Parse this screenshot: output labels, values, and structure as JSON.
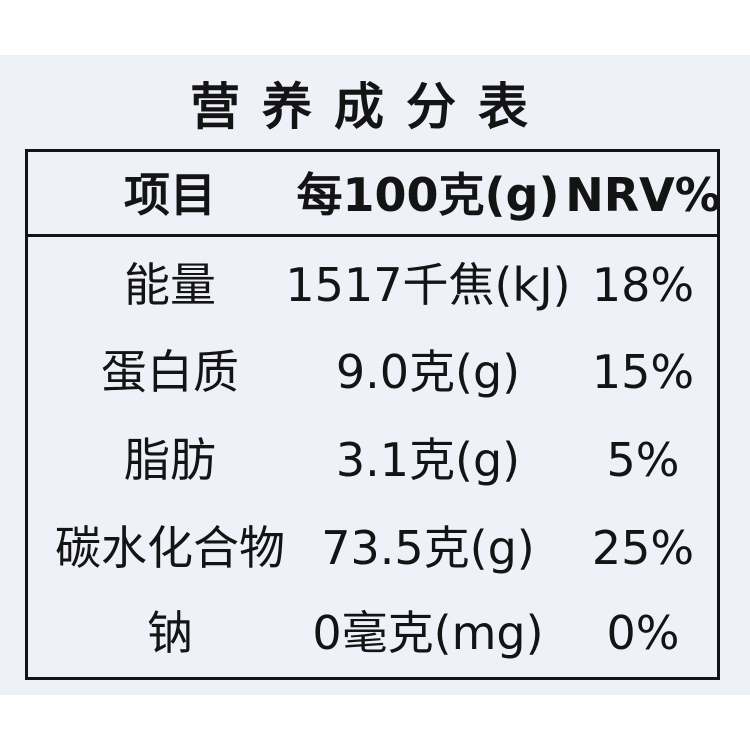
{
  "title": "营养成分表",
  "columns": [
    "项目",
    "每100克(g)",
    "NRV%"
  ],
  "rows": [
    {
      "item": "能量",
      "per100": "1517千焦(kJ)",
      "nrv": "18%"
    },
    {
      "item": "蛋白质",
      "per100": "9.0克(g)",
      "nrv": "15%"
    },
    {
      "item": "脂肪",
      "per100": "3.1克(g)",
      "nrv": "5%"
    },
    {
      "item": "碳水化合物",
      "per100": "73.5克(g)",
      "nrv": "25%"
    },
    {
      "item": "钠",
      "per100": "0毫克(mg)",
      "nrv": "0%"
    }
  ]
}
